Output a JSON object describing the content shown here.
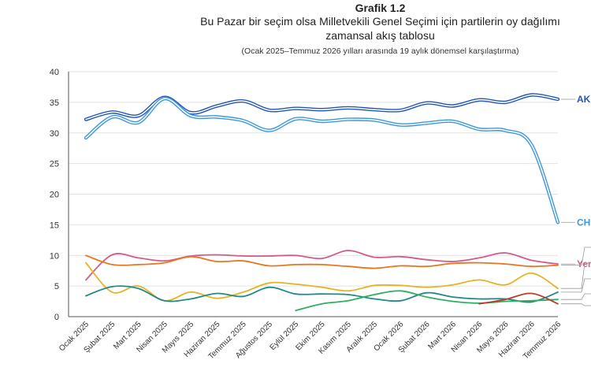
{
  "header": {
    "title": "Grafik 1.2",
    "subtitle_line1": "Bu Pazar bir seçim olsa Milletvekili Genel Seçimi için partilerin oy dağılımı",
    "subtitle_line2": "zamansal akış tablosu",
    "note": "(Ocak 2025–Temmuz 2026 yılları arasında 19 aylık dönemsel karşılaştırma)"
  },
  "chart_data": {
    "type": "line",
    "title": "Bu Pazar bir seçim olsa Milletvekili Genel Seçimi için partilerin oy dağılımı zamansal akış tablosu",
    "xlabel": "",
    "ylabel": "",
    "ylim": [
      0,
      40
    ],
    "yticks": [
      0,
      5,
      10,
      15,
      20,
      25,
      30,
      35,
      40
    ],
    "grid": true,
    "legend": "end-of-line labels (right, partially cut off)",
    "categories": [
      "Ocak 2025",
      "Şubat 2025",
      "Mart 2025",
      "Nisan 2025",
      "Mayıs 2025",
      "Haziran 2025",
      "Temmuz 2025",
      "Ağustos 2025",
      "Eylül 2025",
      "Ekim 2025",
      "Kasım 2025",
      "Aralık 2025",
      "Ocak 2026",
      "Şubat 2026",
      "Mart 2026",
      "Nisan 2026",
      "Mayıs 2026",
      "Haziran 2026",
      "Temmuz 2026"
    ],
    "series": [
      {
        "name": "AK",
        "color": "#2456b4",
        "label_color": "#2456b4",
        "width": 2.2,
        "values": [
          32.2,
          33.4,
          32.8,
          35.8,
          33.3,
          34.4,
          35.2,
          33.7,
          34.0,
          33.8,
          34.1,
          33.8,
          33.7,
          34.9,
          34.4,
          35.4,
          35.0,
          36.2,
          35.5
        ]
      },
      {
        "name": "CH",
        "color": "#3f98db",
        "label_color": "#3f98db",
        "width": 2.2,
        "values": [
          29.2,
          32.6,
          31.7,
          35.6,
          32.8,
          32.6,
          32.0,
          30.4,
          32.3,
          31.9,
          32.2,
          32.1,
          31.3,
          31.6,
          31.9,
          30.6,
          30.4,
          28.0,
          15.4
        ]
      },
      {
        "name": "Yen",
        "color": "#d45a8c",
        "label_color": "#d45a8c",
        "width": 1.8,
        "values": [
          6.0,
          10.1,
          9.6,
          9.1,
          9.9,
          10.1,
          9.9,
          9.9,
          10.0,
          9.5,
          10.8,
          9.7,
          9.8,
          9.3,
          9.0,
          9.6,
          10.4,
          9.2,
          8.6
        ]
      },
      {
        "name": "",
        "color": "#e8761e",
        "width": 1.8,
        "values": [
          10.0,
          8.5,
          8.5,
          8.8,
          9.8,
          9.0,
          9.1,
          8.3,
          8.5,
          8.5,
          8.2,
          7.9,
          8.3,
          8.2,
          8.7,
          8.8,
          8.6,
          8.2,
          8.4
        ]
      },
      {
        "name": "",
        "color": "#e6b422",
        "width": 1.8,
        "values": [
          8.8,
          4.0,
          5.0,
          2.6,
          4.0,
          3.0,
          4.0,
          5.5,
          5.3,
          4.8,
          4.2,
          5.1,
          5.1,
          4.8,
          5.2,
          6.0,
          5.2,
          7.1,
          4.6
        ]
      },
      {
        "name": "",
        "color": "#1f8a86",
        "width": 1.8,
        "values": [
          3.4,
          4.9,
          4.6,
          2.6,
          2.9,
          3.8,
          3.3,
          4.8,
          3.7,
          3.7,
          3.6,
          2.9,
          2.6,
          3.9,
          3.2,
          2.9,
          2.9,
          2.4,
          4.0
        ]
      },
      {
        "name": "",
        "color": "#2fae63",
        "width": 1.8,
        "values": [
          null,
          null,
          null,
          null,
          null,
          null,
          null,
          null,
          1.0,
          2.1,
          2.6,
          3.6,
          4.2,
          3.2,
          2.5,
          2.2,
          2.5,
          2.6,
          2.8
        ]
      },
      {
        "name": "",
        "color": "#c0392b",
        "width": 1.8,
        "values": [
          null,
          null,
          null,
          null,
          null,
          null,
          null,
          null,
          null,
          null,
          null,
          null,
          null,
          null,
          null,
          2.1,
          2.8,
          3.8,
          2.1
        ]
      }
    ]
  }
}
